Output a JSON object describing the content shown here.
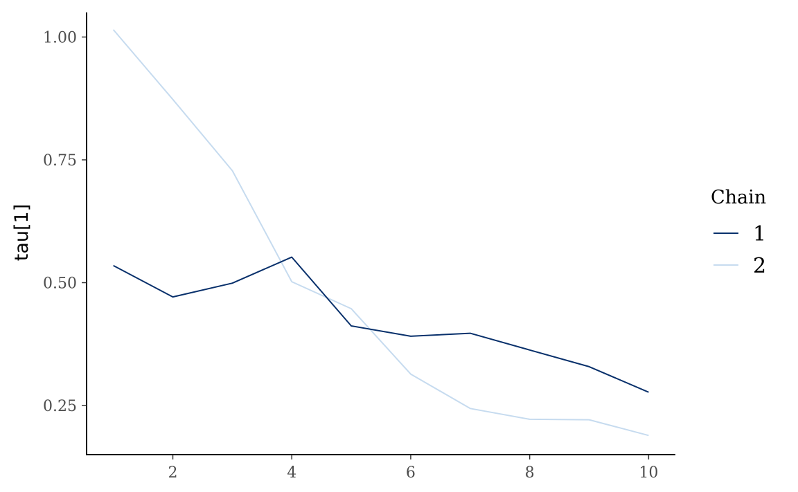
{
  "chart_data": {
    "type": "line",
    "title": "",
    "xlabel": "",
    "ylabel": "tau[1]",
    "x": [
      1,
      2,
      3,
      4,
      5,
      6,
      7,
      8,
      9,
      10
    ],
    "xlim": [
      0.55,
      10.45
    ],
    "ylim": [
      0.15,
      1.05
    ],
    "x_ticks": [
      2,
      4,
      6,
      8,
      10
    ],
    "x_tick_labels": [
      "2",
      "4",
      "6",
      "8",
      "10"
    ],
    "y_ticks": [
      0.25,
      0.5,
      0.75,
      1.0
    ],
    "y_tick_labels": [
      "0.25",
      "0.50",
      "0.75",
      "1.00"
    ],
    "grid": false,
    "legend": {
      "title": "Chain",
      "position": "right"
    },
    "series": [
      {
        "name": "1",
        "color": "#08306b",
        "values": [
          0.535,
          0.471,
          0.499,
          0.552,
          0.412,
          0.391,
          0.397,
          0.363,
          0.329,
          0.277
        ]
      },
      {
        "name": "2",
        "color": "#c6dbef",
        "values": [
          1.015,
          0.873,
          0.728,
          0.502,
          0.447,
          0.314,
          0.244,
          0.222,
          0.221,
          0.189
        ]
      }
    ]
  }
}
